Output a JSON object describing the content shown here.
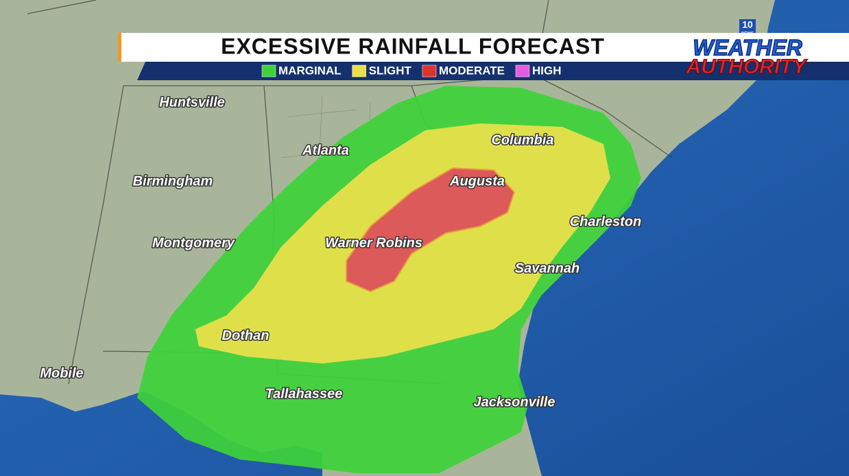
{
  "header": {
    "title": "EXCESSIVE RAINFALL FORECAST",
    "legend": [
      {
        "label": "MARGINAL",
        "color": "#3ed23a"
      },
      {
        "label": "SLIGHT",
        "color": "#e8e04a"
      },
      {
        "label": "MODERATE",
        "color": "#e0332f"
      },
      {
        "label": "HIGH",
        "color": "#e85ae0"
      }
    ]
  },
  "logo": {
    "station": "10",
    "network": "NEWS",
    "line1": "WEATHER",
    "line2": "AUTHORITY"
  },
  "cities": [
    {
      "name": "Huntsville"
    },
    {
      "name": "Atlanta"
    },
    {
      "name": "Columbia"
    },
    {
      "name": "Birmingham"
    },
    {
      "name": "Augusta"
    },
    {
      "name": "Charleston"
    },
    {
      "name": "Montgomery"
    },
    {
      "name": "Warner Robins"
    },
    {
      "name": "Savannah"
    },
    {
      "name": "Dothan"
    },
    {
      "name": "Mobile"
    },
    {
      "name": "Tallahassee"
    },
    {
      "name": "Jacksonville"
    }
  ]
}
